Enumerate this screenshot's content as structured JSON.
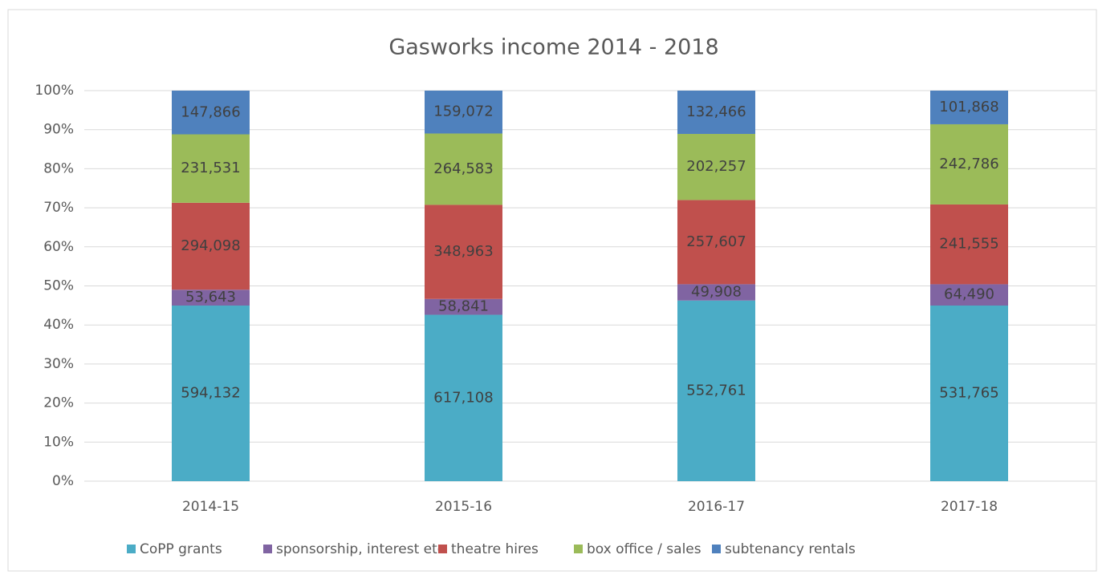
{
  "chart_data": {
    "type": "bar",
    "stacking": "percent",
    "title": "Gasworks income 2014 - 2018",
    "categories": [
      "2014-15",
      "2015-16",
      "2016-17",
      "2017-18"
    ],
    "series": [
      {
        "name": "CoPP grants",
        "color": "#4bacc6",
        "values": [
          594132,
          617108,
          552761,
          531765
        ],
        "value_labels": [
          "594,132",
          "617,108",
          "552,761",
          "531,765"
        ]
      },
      {
        "name": "sponsorship, interest etc",
        "color": "#8064a2",
        "values": [
          53643,
          58841,
          49908,
          64490
        ],
        "value_labels": [
          "53,643",
          "58,841",
          "49,908",
          "64,490"
        ]
      },
      {
        "name": "theatre hires",
        "color": "#c0504d",
        "values": [
          294098,
          348963,
          257607,
          241555
        ],
        "value_labels": [
          "294,098",
          "348,963",
          "257,607",
          "241,555"
        ]
      },
      {
        "name": "box office / sales",
        "color": "#9bbb59",
        "values": [
          231531,
          264583,
          202257,
          242786
        ],
        "value_labels": [
          "231,531",
          "264,583",
          "202,257",
          "242,786"
        ]
      },
      {
        "name": "subtenancy rentals",
        "color": "#4f81bd",
        "values": [
          147866,
          159072,
          132466,
          101868
        ],
        "value_labels": [
          "147,866",
          "159,072",
          "132,466",
          "101,868"
        ]
      }
    ],
    "ylim": [
      0,
      100
    ],
    "yticks": [
      {
        "value": 0,
        "label": "0%"
      },
      {
        "value": 10,
        "label": "10%"
      },
      {
        "value": 20,
        "label": "20%"
      },
      {
        "value": 30,
        "label": "30%"
      },
      {
        "value": 40,
        "label": "40%"
      },
      {
        "value": 50,
        "label": "50%"
      },
      {
        "value": 60,
        "label": "60%"
      },
      {
        "value": 70,
        "label": "70%"
      },
      {
        "value": 80,
        "label": "80%"
      },
      {
        "value": 90,
        "label": "90%"
      },
      {
        "value": 100,
        "label": "100%"
      }
    ],
    "grid": true,
    "legend": "bottom"
  }
}
